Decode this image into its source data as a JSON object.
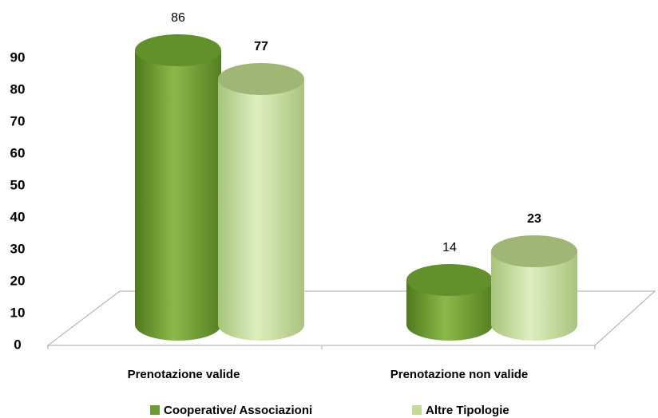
{
  "chart_data": {
    "type": "bar3d",
    "categories": [
      "Prenotazione valide",
      "Prenotazione non valide"
    ],
    "series": [
      {
        "name": "Cooperative/ Associazioni",
        "color": "#6e9a2e",
        "values": [
          86,
          14
        ]
      },
      {
        "name": "Altre Tipologie",
        "color": "#c3db96",
        "values": [
          77,
          23
        ]
      }
    ],
    "ylim": [
      0,
      90
    ],
    "yticks": [
      0,
      10,
      20,
      30,
      40,
      50,
      60,
      70,
      80,
      90
    ],
    "grid": false,
    "legend": "bottom"
  }
}
